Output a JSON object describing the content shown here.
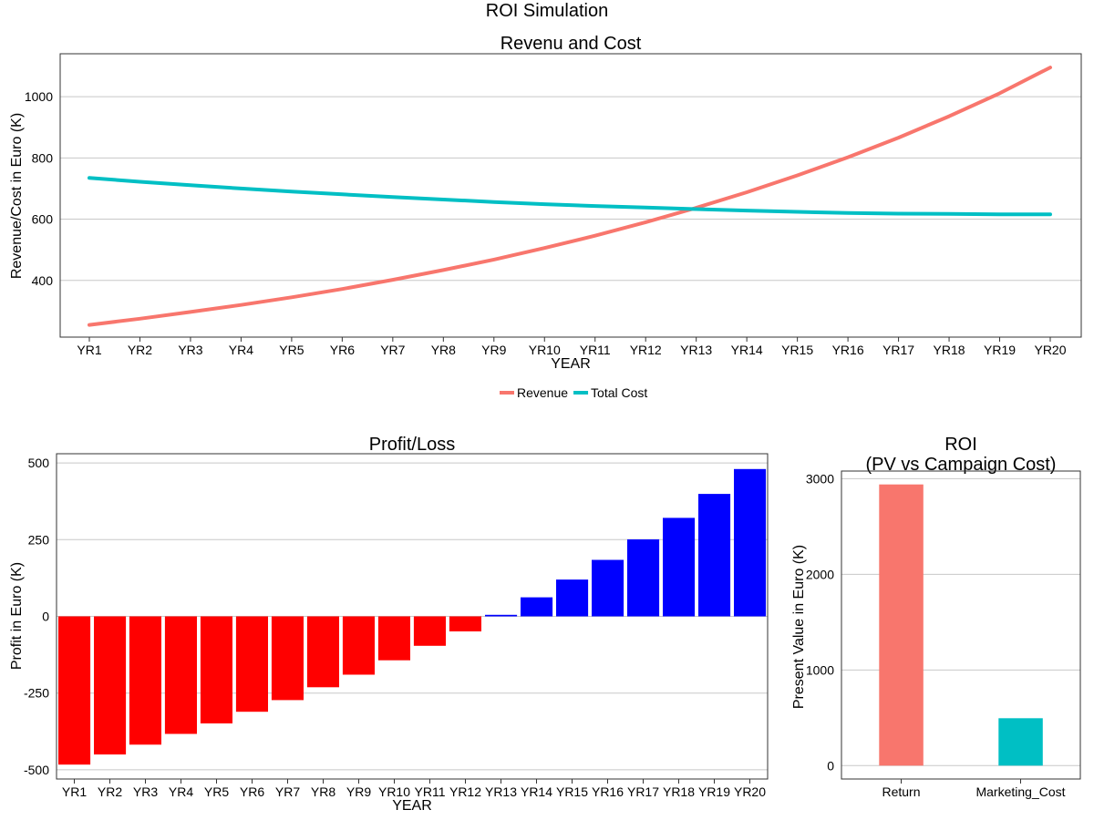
{
  "title": "ROI Simulation",
  "chart_data": [
    {
      "type": "line",
      "title": "Revenu and Cost",
      "xlabel": "YEAR",
      "ylabel": "Revenue/Cost in Euro (K)",
      "categories": [
        "YR1",
        "YR2",
        "YR3",
        "YR4",
        "YR5",
        "YR6",
        "YR7",
        "YR8",
        "YR9",
        "YR10",
        "YR11",
        "YR12",
        "YR13",
        "YR14",
        "YR15",
        "YR16",
        "YR17",
        "YR18",
        "YR19",
        "YR20"
      ],
      "ylim": [
        215,
        1140
      ],
      "yticks": [
        400,
        600,
        800,
        1000
      ],
      "grid": true,
      "legend_position": "bottom",
      "series": [
        {
          "name": "Revenue",
          "color": "#f8766d",
          "values": [
            255,
            275,
            297,
            320,
            345,
            372,
            402,
            434,
            468,
            506,
            546,
            590,
            637,
            688,
            743,
            802,
            866,
            936,
            1011,
            1095
          ]
        },
        {
          "name": "Total Cost",
          "color": "#00bfc4",
          "values": [
            735,
            722,
            711,
            700,
            690,
            681,
            672,
            664,
            656,
            649,
            643,
            638,
            633,
            628,
            624,
            620,
            618,
            617,
            616,
            616
          ]
        }
      ]
    },
    {
      "type": "bar",
      "title": "Profit/Loss",
      "xlabel": "YEAR",
      "ylabel": "Profit in Euro (K)",
      "categories": [
        "YR1",
        "YR2",
        "YR3",
        "YR4",
        "YR5",
        "YR6",
        "YR7",
        "YR8",
        "YR9",
        "YR10",
        "YR11",
        "YR12",
        "YR13",
        "YR14",
        "YR15",
        "YR16",
        "YR17",
        "YR18",
        "YR19",
        "YR20"
      ],
      "values": [
        -483,
        -450,
        -418,
        -383,
        -349,
        -311,
        -273,
        -231,
        -190,
        -143,
        -96,
        -49,
        5,
        62,
        120,
        184,
        251,
        321,
        399,
        480
      ],
      "ylim": [
        -530,
        530
      ],
      "yticks": [
        -500,
        -250,
        0,
        250,
        500
      ],
      "negative_color": "#ff0000",
      "positive_color": "#0000ff",
      "grid": true
    },
    {
      "type": "bar",
      "title": "ROI",
      "subtitle": "(PV vs Campaign Cost)",
      "xlabel": "",
      "ylabel": "Present Value in Euro (K)",
      "categories": [
        "Return",
        "Marketing_Cost"
      ],
      "values": [
        2940,
        495
      ],
      "colors": [
        "#f8766d",
        "#00bfc4"
      ],
      "ylim": [
        -140,
        3080
      ],
      "yticks": [
        0,
        1000,
        2000,
        3000
      ],
      "grid": true
    }
  ]
}
